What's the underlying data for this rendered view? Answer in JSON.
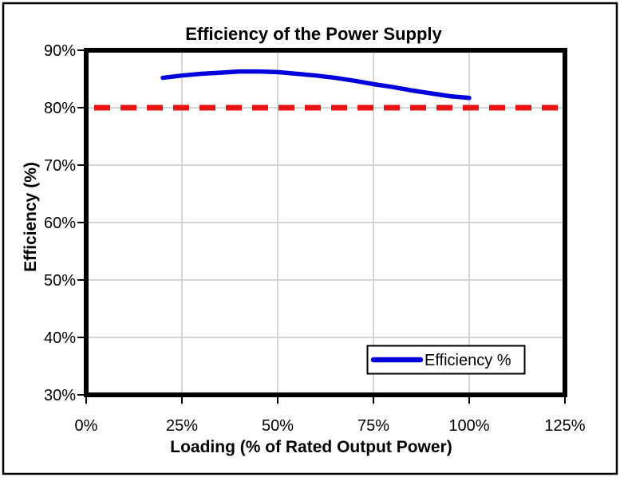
{
  "figure": {
    "title": "Efficiency of the Power Supply",
    "x_axis_title": "Loading (% of Rated Output Power)",
    "y_axis_title": "Efficiency (%)",
    "legend_label": "Efficiency %",
    "x_tick_labels": [
      "0%",
      "25%",
      "50%",
      "75%",
      "100%",
      "125%"
    ],
    "y_tick_labels": [
      "30%",
      "40%",
      "50%",
      "60%",
      "70%",
      "80%",
      "90%"
    ],
    "colors": {
      "series_line": "#0000dd",
      "reference_line": "#e81313",
      "gridline": "#c6c6c6",
      "plot_border": "#000000",
      "outer_border": "#000000",
      "background": "#ffffff",
      "text": "#000000"
    }
  },
  "chart_data": {
    "type": "line",
    "title": "Efficiency of the Power Supply",
    "xlabel": "Loading (% of Rated Output Power)",
    "ylabel": "Efficiency (%)",
    "xlim": [
      0,
      125
    ],
    "ylim": [
      30,
      90
    ],
    "x_ticks": [
      0,
      25,
      50,
      75,
      100,
      125
    ],
    "y_ticks": [
      30,
      40,
      50,
      60,
      70,
      80,
      90
    ],
    "tick_format": "percent",
    "grid": true,
    "legend": {
      "entries": [
        "Efficiency %"
      ],
      "position": "inside-bottom-right"
    },
    "series": [
      {
        "name": "Efficiency %",
        "color": "#0000dd",
        "style": "solid",
        "x": [
          20,
          25,
          30,
          35,
          40,
          45,
          50,
          55,
          60,
          65,
          70,
          75,
          80,
          85,
          90,
          95,
          100
        ],
        "y": [
          85.2,
          85.6,
          85.9,
          86.1,
          86.3,
          86.3,
          86.2,
          85.9,
          85.6,
          85.2,
          84.7,
          84.1,
          83.6,
          83.0,
          82.5,
          82.0,
          81.7
        ]
      },
      {
        "name": "80% reference line",
        "color": "#e81313",
        "style": "dashed",
        "y_value": 80,
        "x_start": 0,
        "x_end": 125,
        "in_legend": false
      }
    ]
  }
}
